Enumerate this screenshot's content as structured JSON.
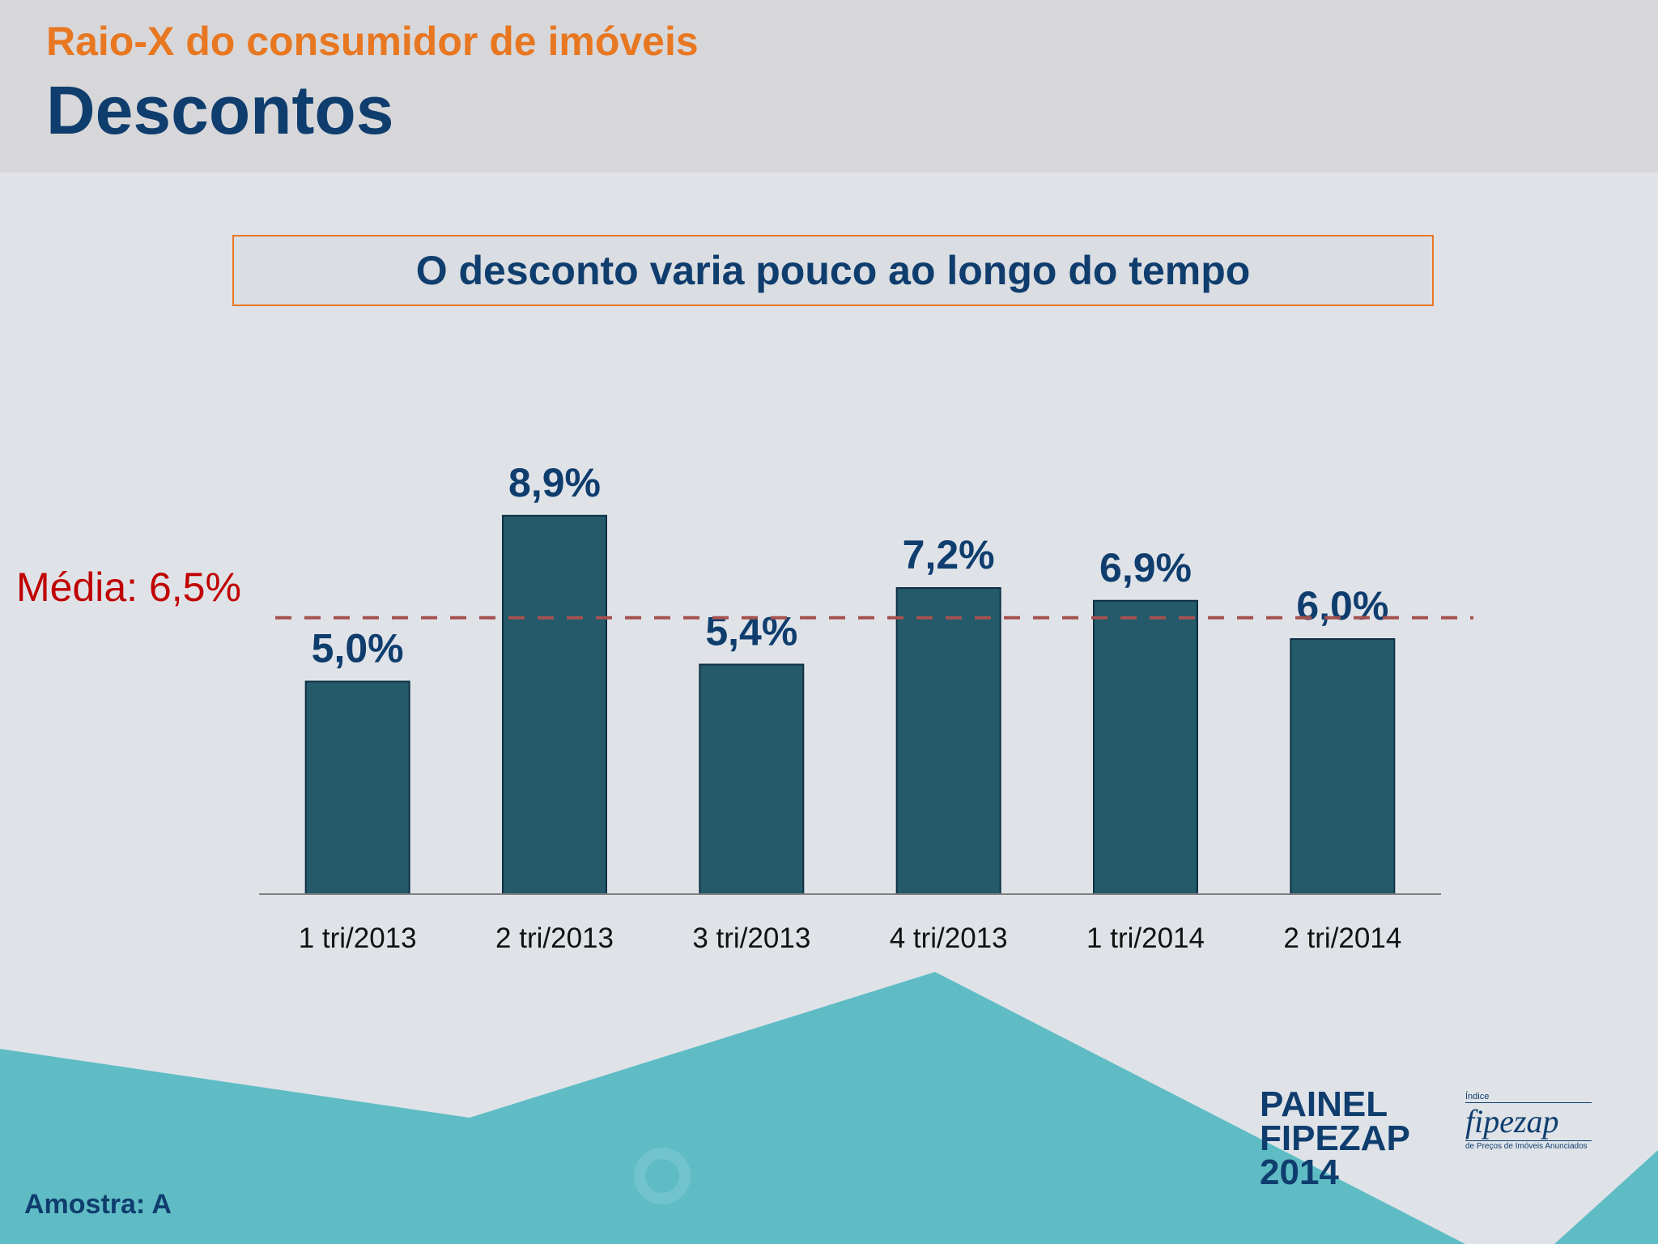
{
  "header": {
    "kicker": "Raio-X do consumidor de imóveis",
    "title": "Descontos"
  },
  "subtitle": "O desconto varia pouco ao longo do tempo",
  "average_label": "Média: 6,5%",
  "footer": {
    "sample": "Amostra: A",
    "logo_lines": [
      "PAINEL",
      "FIPEZAP",
      "2014"
    ],
    "fipezap_small": "Índice",
    "fipezap_big": "fipezap",
    "fipezap_tag": "de Preços de Imóveis Anunciados"
  },
  "colors": {
    "bar": "#245a6a",
    "value_text": "#0f3d6e",
    "average_line": "#a5524f",
    "accent": "#e87722",
    "decor": "#5fbcc5"
  },
  "chart_data": {
    "type": "bar",
    "categories": [
      "1 tri/2013",
      "2 tri/2013",
      "3 tri/2013",
      "4 tri/2013",
      "1 tri/2014",
      "2 tri/2014"
    ],
    "values": [
      5.0,
      8.9,
      5.4,
      7.2,
      6.9,
      6.0
    ],
    "value_labels": [
      "5,0%",
      "8,9%",
      "5,4%",
      "7,2%",
      "6,9%",
      "6,0%"
    ],
    "average": 6.5,
    "ylim": [
      0,
      10
    ],
    "grid": false,
    "legend": "none"
  }
}
